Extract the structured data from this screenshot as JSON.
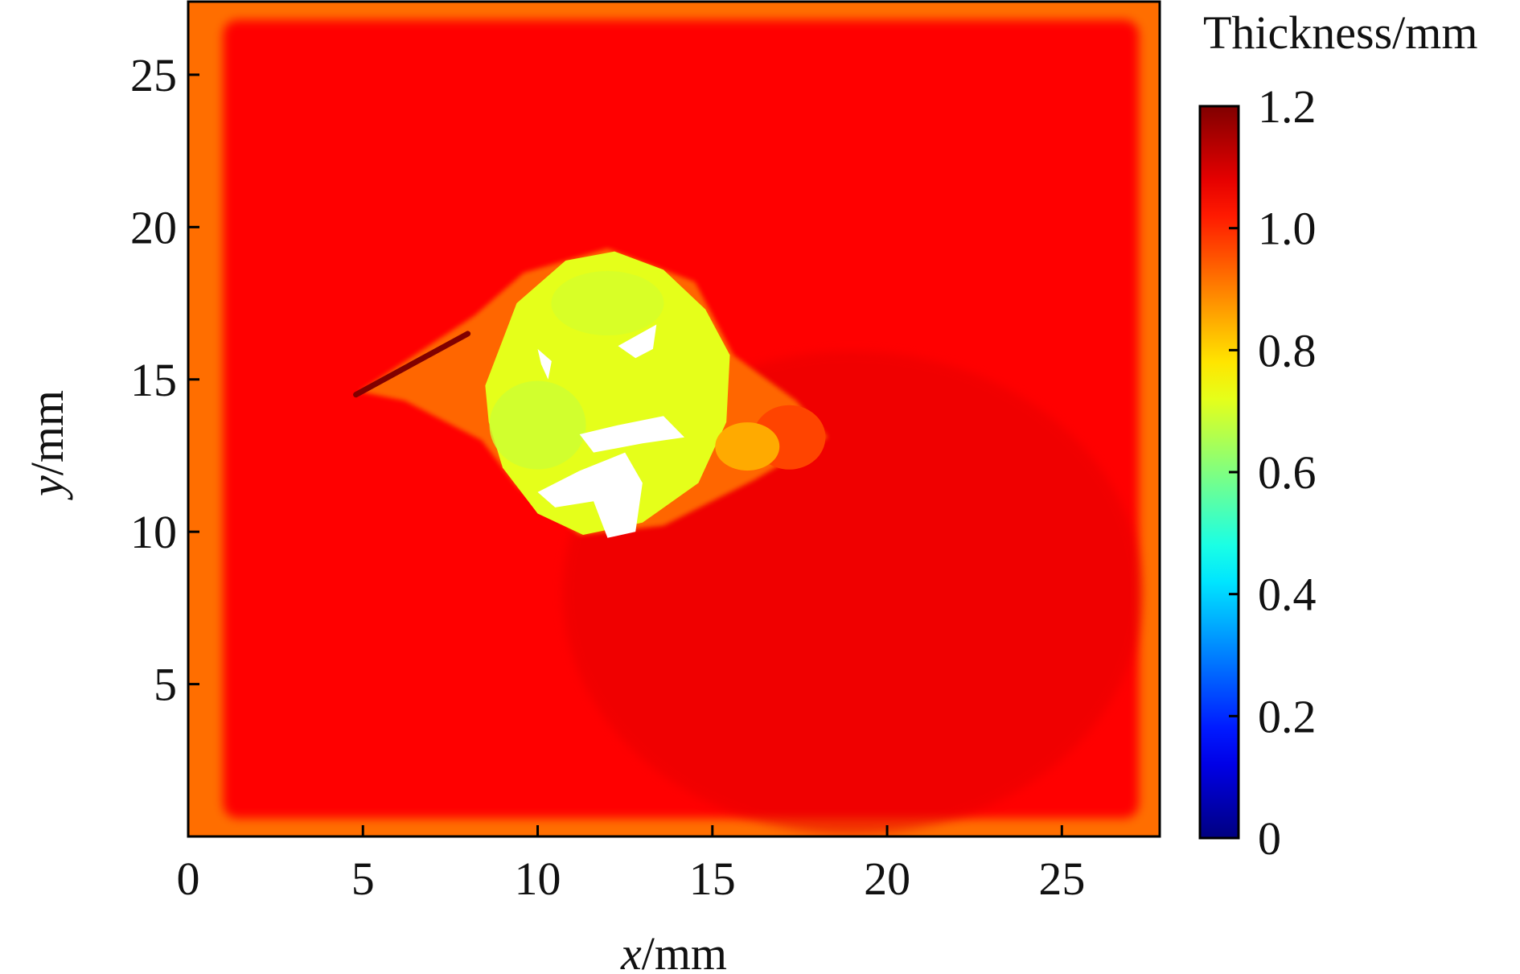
{
  "chart_data": {
    "type": "heatmap",
    "xlabel": {
      "var": "x",
      "unit": "/mm"
    },
    "ylabel": {
      "var": "y",
      "unit": "/mm"
    },
    "xlim": [
      0,
      27.8
    ],
    "ylim": [
      0,
      27.4
    ],
    "x_ticks": [
      0,
      5,
      10,
      15,
      20,
      25
    ],
    "y_ticks": [
      5,
      10,
      15,
      20,
      25
    ],
    "x_tick_labels": [
      "0",
      "5",
      "10",
      "15",
      "20",
      "25"
    ],
    "y_tick_labels": [
      "5",
      "10",
      "15",
      "20",
      "25"
    ],
    "colorbar": {
      "title": "Thickness/mm",
      "range": [
        0,
        1.2
      ],
      "ticks": [
        0,
        0.2,
        0.4,
        0.6,
        0.8,
        1.0,
        1.2
      ],
      "tick_labels": [
        "0",
        "0.2",
        "0.4",
        "0.6",
        "0.8",
        "1.0",
        "1.2"
      ],
      "colormap": "jet"
    },
    "field": {
      "background_thickness": 1.05,
      "edge_thickness": 0.92,
      "defect_region": {
        "center": [
          11.8,
          14.3
        ],
        "x_extent": [
          8.3,
          18.3
        ],
        "y_extent": [
          9.8,
          19.2
        ],
        "thickness": 0.72,
        "missing_data_areas": true
      },
      "crack": {
        "from": [
          4.8,
          14.5
        ],
        "to": [
          8.0,
          16.5
        ],
        "thickness": 1.2
      }
    },
    "grid": false,
    "legend": "none"
  }
}
